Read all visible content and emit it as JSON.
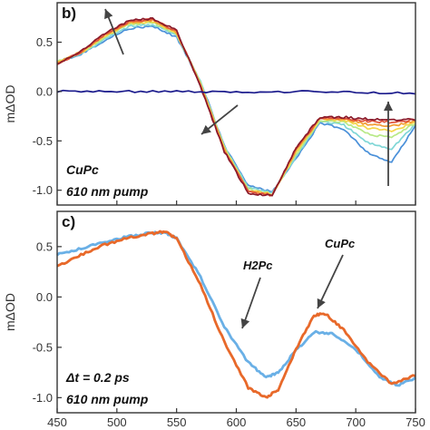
{
  "chart_data": [
    {
      "panel": "b)",
      "type": "line",
      "xlim": [
        450,
        750
      ],
      "ylim": [
        -1.15,
        0.9
      ],
      "xticks": [
        450,
        500,
        550,
        600,
        650,
        700,
        750
      ],
      "yticks": [
        0.5,
        0.0,
        -0.5,
        -1.0
      ],
      "ylabel": "mΔOD",
      "annotations": [
        "CuPc",
        "610 nm pump"
      ],
      "arrows": [
        "increase",
        "decrease",
        "decrease",
        "increase"
      ],
      "series": [
        {
          "color": "#4a90d9",
          "x": [
            450,
            470,
            490,
            510,
            530,
            550,
            570,
            590,
            610,
            630,
            650,
            670,
            690,
            710,
            730,
            750
          ],
          "y": [
            0.3,
            0.38,
            0.52,
            0.64,
            0.66,
            0.55,
            0.1,
            -0.55,
            -0.95,
            -1.02,
            -0.68,
            -0.32,
            -0.38,
            -0.62,
            -0.72,
            -0.35
          ]
        },
        {
          "color": "#7fd6d6",
          "x": [
            450,
            470,
            490,
            510,
            530,
            550,
            570,
            590,
            610,
            630,
            650,
            670,
            690,
            710,
            730,
            750
          ],
          "y": [
            0.3,
            0.38,
            0.53,
            0.66,
            0.68,
            0.57,
            0.1,
            -0.56,
            -0.97,
            -1.03,
            -0.66,
            -0.3,
            -0.34,
            -0.52,
            -0.58,
            -0.33
          ]
        },
        {
          "color": "#b8e986",
          "x": [
            450,
            470,
            490,
            510,
            530,
            550,
            570,
            590,
            610,
            630,
            650,
            670,
            690,
            710,
            730,
            750
          ],
          "y": [
            0.3,
            0.39,
            0.55,
            0.68,
            0.7,
            0.58,
            0.09,
            -0.57,
            -0.99,
            -1.04,
            -0.64,
            -0.29,
            -0.31,
            -0.43,
            -0.47,
            -0.32
          ]
        },
        {
          "color": "#f5d64a",
          "x": [
            450,
            470,
            490,
            510,
            530,
            550,
            570,
            590,
            610,
            630,
            650,
            670,
            690,
            710,
            730,
            750
          ],
          "y": [
            0.29,
            0.39,
            0.56,
            0.69,
            0.71,
            0.59,
            0.08,
            -0.58,
            -1.0,
            -1.04,
            -0.62,
            -0.28,
            -0.29,
            -0.37,
            -0.4,
            -0.31
          ]
        },
        {
          "color": "#f39c34",
          "x": [
            450,
            470,
            490,
            510,
            530,
            550,
            570,
            590,
            610,
            630,
            650,
            670,
            690,
            710,
            730,
            750
          ],
          "y": [
            0.29,
            0.4,
            0.57,
            0.7,
            0.72,
            0.6,
            0.07,
            -0.59,
            -1.01,
            -1.05,
            -0.6,
            -0.27,
            -0.28,
            -0.33,
            -0.35,
            -0.3
          ]
        },
        {
          "color": "#e0533a",
          "x": [
            450,
            470,
            490,
            510,
            530,
            550,
            570,
            590,
            610,
            630,
            650,
            670,
            690,
            710,
            730,
            750
          ],
          "y": [
            0.28,
            0.4,
            0.58,
            0.71,
            0.73,
            0.61,
            0.06,
            -0.6,
            -1.02,
            -1.05,
            -0.58,
            -0.27,
            -0.27,
            -0.3,
            -0.31,
            -0.29
          ]
        },
        {
          "color": "#8b1a2a",
          "x": [
            450,
            470,
            490,
            510,
            530,
            550,
            570,
            590,
            610,
            630,
            650,
            670,
            690,
            710,
            730,
            750
          ],
          "y": [
            0.28,
            0.41,
            0.59,
            0.72,
            0.74,
            0.62,
            0.05,
            -0.61,
            -1.03,
            -1.06,
            -0.57,
            -0.26,
            -0.26,
            -0.28,
            -0.29,
            -0.28
          ]
        },
        {
          "color": "#1a1a8c",
          "x": [
            450,
            500,
            550,
            600,
            650,
            700,
            750
          ],
          "y": [
            0.0,
            0.0,
            0.0,
            -0.01,
            0.0,
            -0.01,
            -0.02
          ]
        }
      ]
    },
    {
      "panel": "c)",
      "type": "line",
      "xlim": [
        450,
        750
      ],
      "ylim": [
        -1.15,
        0.85
      ],
      "xticks": [
        450,
        500,
        550,
        600,
        650,
        700,
        750
      ],
      "yticks": [
        0.5,
        0.0,
        -0.5,
        -1.0
      ],
      "xtick_labels": [
        "450",
        "500",
        "550",
        "600",
        "650",
        "700",
        "750"
      ],
      "ylabel": "mΔOD",
      "annotations": [
        "Δt = 0.2 ps",
        "610 nm pump"
      ],
      "series": [
        {
          "name": "H2Pc",
          "color": "#6ab0e6",
          "x": [
            450,
            470,
            490,
            510,
            530,
            540,
            550,
            570,
            590,
            610,
            625,
            635,
            650,
            665,
            680,
            700,
            720,
            735,
            750
          ],
          "y": [
            0.42,
            0.48,
            0.55,
            0.6,
            0.64,
            0.64,
            0.58,
            0.2,
            -0.3,
            -0.65,
            -0.8,
            -0.75,
            -0.53,
            -0.35,
            -0.36,
            -0.52,
            -0.8,
            -0.88,
            -0.8
          ]
        },
        {
          "name": "CuPc",
          "color": "#e8692a",
          "x": [
            450,
            470,
            490,
            510,
            530,
            540,
            550,
            570,
            590,
            610,
            625,
            635,
            650,
            665,
            675,
            690,
            710,
            730,
            750
          ],
          "y": [
            0.3,
            0.42,
            0.52,
            0.59,
            0.63,
            0.65,
            0.58,
            0.12,
            -0.45,
            -0.9,
            -1.0,
            -0.92,
            -0.52,
            -0.18,
            -0.17,
            -0.33,
            -0.65,
            -0.86,
            -0.78
          ]
        }
      ]
    }
  ]
}
